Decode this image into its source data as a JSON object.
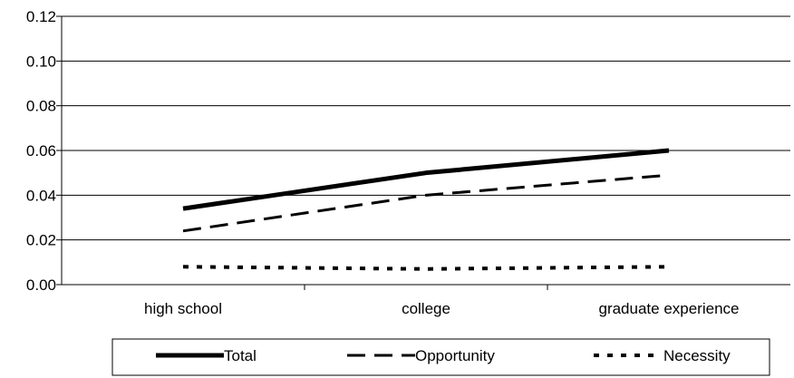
{
  "chart_data": {
    "type": "line",
    "title": "",
    "xlabel": "",
    "ylabel": "",
    "categories": [
      "high school",
      "college",
      "graduate experience"
    ],
    "ylim": [
      0,
      0.12
    ],
    "yticks": [
      "0.00",
      "0.02",
      "0.04",
      "0.06",
      "0.08",
      "0.10",
      "0.12"
    ],
    "grid": true,
    "legend_position": "bottom",
    "series": [
      {
        "name": "Total",
        "values": [
          0.034,
          0.05,
          0.06
        ],
        "style": "solid",
        "color": "#000000"
      },
      {
        "name": "Opportunity",
        "values": [
          0.024,
          0.04,
          0.049
        ],
        "style": "dashed",
        "color": "#000000"
      },
      {
        "name": "Necessity",
        "values": [
          0.008,
          0.007,
          0.008
        ],
        "style": "dotted",
        "color": "#000000"
      }
    ]
  }
}
